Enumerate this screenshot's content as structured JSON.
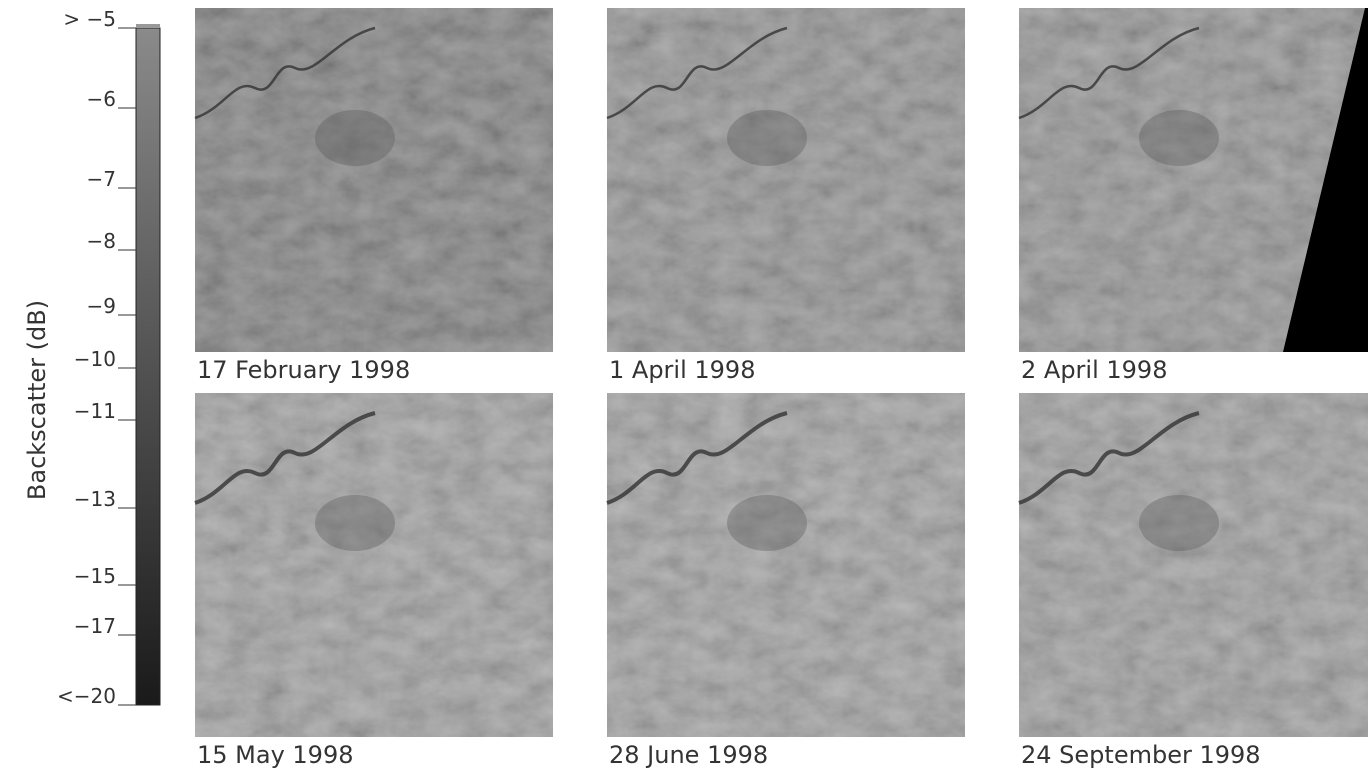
{
  "colorbar": {
    "label": "Backscatter (dB)",
    "ticks": [
      "> −5",
      "−6",
      "−7",
      "−8",
      "−9",
      "−10",
      "−11",
      "−13",
      "−15",
      "−17",
      "<−20"
    ]
  },
  "panels": [
    {
      "caption": "17 February 1998"
    },
    {
      "caption": "1 April 1998"
    },
    {
      "caption": "2 April 1998"
    },
    {
      "caption": "15 May 1998"
    },
    {
      "caption": "28 June 1998"
    },
    {
      "caption": "24 September 1998"
    }
  ]
}
